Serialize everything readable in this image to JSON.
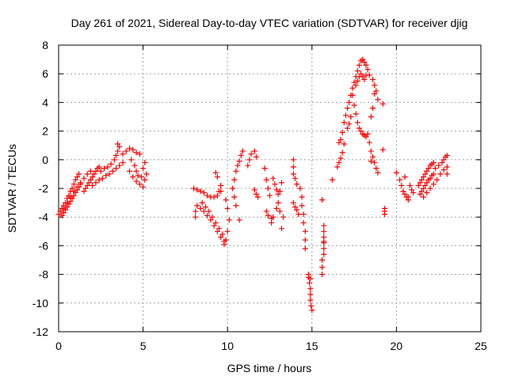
{
  "chart_data": {
    "type": "scatter",
    "title": "Day 261 of 2021, Sidereal Day-to-day VTEC variation (SDTVAR) for receiver djig",
    "xlabel": "GPS time / hours",
    "ylabel": "SDTVAR / TECUs",
    "xlim": [
      0,
      25
    ],
    "ylim": [
      -12,
      8
    ],
    "xticks": [
      0,
      5,
      10,
      15,
      20,
      25
    ],
    "xtick_labels": [
      "0",
      "5",
      "10",
      "15",
      "20",
      "25"
    ],
    "yticks": [
      -12,
      -10,
      -8,
      -6,
      -4,
      -2,
      0,
      2,
      4,
      6,
      8
    ],
    "ytick_labels": [
      "-12",
      "-10",
      "-8",
      "-6",
      "-4",
      "-2",
      "0",
      "2",
      "4",
      "6",
      "8"
    ],
    "grid": true,
    "marker": "+",
    "color": "#ff0000",
    "series": [
      {
        "values": [
          [
            0.0,
            -3.8
          ],
          [
            0.1,
            -3.6
          ],
          [
            0.2,
            -3.4
          ],
          [
            0.3,
            -3.2
          ],
          [
            0.4,
            -3.0
          ],
          [
            0.5,
            -2.7
          ],
          [
            0.6,
            -2.5
          ],
          [
            0.7,
            -2.2
          ],
          [
            0.8,
            -2.0
          ],
          [
            0.9,
            -1.7
          ],
          [
            1.0,
            -1.4
          ],
          [
            1.1,
            -1.2
          ],
          [
            1.2,
            -1.0
          ],
          [
            0.2,
            -3.9
          ],
          [
            0.3,
            -3.7
          ],
          [
            0.4,
            -3.5
          ],
          [
            0.5,
            -3.3
          ],
          [
            0.6,
            -3.1
          ],
          [
            0.7,
            -2.9
          ],
          [
            0.8,
            -2.7
          ],
          [
            0.9,
            -2.5
          ],
          [
            1.0,
            -2.3
          ],
          [
            1.1,
            -2.1
          ],
          [
            1.2,
            -1.9
          ],
          [
            1.3,
            -1.7
          ],
          [
            0.3,
            -3.4
          ],
          [
            0.5,
            -3.0
          ],
          [
            0.7,
            -2.6
          ],
          [
            0.9,
            -2.2
          ],
          [
            1.1,
            -1.9
          ],
          [
            1.3,
            -1.6
          ],
          [
            1.5,
            -1.3
          ],
          [
            1.7,
            -1.0
          ],
          [
            1.9,
            -0.8
          ],
          [
            1.5,
            -2.2
          ],
          [
            1.6,
            -2.0
          ],
          [
            1.7,
            -1.8
          ],
          [
            1.8,
            -1.6
          ],
          [
            1.9,
            -1.4
          ],
          [
            2.0,
            -1.2
          ],
          [
            2.1,
            -1.0
          ],
          [
            2.2,
            -0.8
          ],
          [
            2.3,
            -0.6
          ],
          [
            2.4,
            -0.5
          ],
          [
            2.0,
            -1.8
          ],
          [
            2.2,
            -1.6
          ],
          [
            2.4,
            -1.4
          ],
          [
            2.6,
            -1.3
          ],
          [
            2.8,
            -1.1
          ],
          [
            3.0,
            -1.0
          ],
          [
            3.2,
            -0.8
          ],
          [
            3.4,
            -0.6
          ],
          [
            3.6,
            -0.4
          ],
          [
            3.8,
            -0.2
          ],
          [
            2.5,
            -0.8
          ],
          [
            2.7,
            -0.6
          ],
          [
            2.9,
            -0.5
          ],
          [
            3.1,
            -0.3
          ],
          [
            3.3,
            0.0
          ],
          [
            3.4,
            0.3
          ],
          [
            3.5,
            0.6
          ],
          [
            3.6,
            0.9
          ],
          [
            3.5,
            1.1
          ],
          [
            3.8,
            0.4
          ],
          [
            4.0,
            0.6
          ],
          [
            4.2,
            0.8
          ],
          [
            4.4,
            0.7
          ],
          [
            4.6,
            0.5
          ],
          [
            4.8,
            0.4
          ],
          [
            4.3,
            0.0
          ],
          [
            4.5,
            -0.4
          ],
          [
            4.6,
            -0.8
          ],
          [
            4.7,
            -1.1
          ],
          [
            4.2,
            -0.8
          ],
          [
            4.4,
            -1.2
          ],
          [
            4.6,
            -1.5
          ],
          [
            4.8,
            -1.7
          ],
          [
            5.0,
            -1.9
          ],
          [
            5.1,
            -1.4
          ],
          [
            5.2,
            -1.0
          ],
          [
            5.0,
            -0.6
          ],
          [
            5.1,
            -0.2
          ],
          [
            4.9,
            -1.2
          ],
          [
            8.0,
            -2.0
          ],
          [
            8.2,
            -2.1
          ],
          [
            8.4,
            -2.2
          ],
          [
            8.6,
            -2.3
          ],
          [
            8.8,
            -2.5
          ],
          [
            9.0,
            -2.6
          ],
          [
            9.2,
            -2.6
          ],
          [
            9.4,
            -2.5
          ],
          [
            9.5,
            -2.2
          ],
          [
            9.6,
            -1.8
          ],
          [
            9.4,
            -1.2
          ],
          [
            9.3,
            -0.9
          ],
          [
            8.2,
            -3.2
          ],
          [
            8.4,
            -3.4
          ],
          [
            8.6,
            -3.6
          ],
          [
            8.8,
            -3.9
          ],
          [
            9.0,
            -4.2
          ],
          [
            9.2,
            -4.6
          ],
          [
            9.4,
            -5.0
          ],
          [
            9.6,
            -5.4
          ],
          [
            9.8,
            -5.7
          ],
          [
            8.5,
            -3.0
          ],
          [
            8.7,
            -3.3
          ],
          [
            8.9,
            -3.6
          ],
          [
            9.1,
            -4.0
          ],
          [
            9.3,
            -4.4
          ],
          [
            9.5,
            -4.8
          ],
          [
            9.7,
            -5.2
          ],
          [
            9.8,
            -5.9
          ],
          [
            8.1,
            -3.6
          ],
          [
            8.1,
            -4.0
          ],
          [
            9.6,
            -2.2
          ],
          [
            9.9,
            -2.8
          ],
          [
            10.0,
            -3.4
          ],
          [
            10.1,
            -4.2
          ],
          [
            10.0,
            -5.0
          ],
          [
            9.9,
            -5.6
          ],
          [
            10.3,
            -2.0
          ],
          [
            10.4,
            -1.4
          ],
          [
            10.5,
            -0.8
          ],
          [
            10.6,
            -0.4
          ],
          [
            10.7,
            -0.1
          ],
          [
            10.8,
            0.3
          ],
          [
            10.9,
            0.6
          ],
          [
            10.4,
            -2.6
          ],
          [
            10.5,
            -3.2
          ],
          [
            10.7,
            -4.2
          ],
          [
            11.2,
            -0.4
          ],
          [
            11.3,
            0.0
          ],
          [
            11.4,
            0.4
          ],
          [
            11.6,
            0.6
          ],
          [
            11.7,
            0.2
          ],
          [
            11.6,
            -2.1
          ],
          [
            11.7,
            -2.4
          ],
          [
            11.8,
            -2.6
          ],
          [
            12.2,
            -0.6
          ],
          [
            12.3,
            -1.4
          ],
          [
            12.4,
            -2.0
          ],
          [
            12.5,
            -2.5
          ],
          [
            12.3,
            -3.6
          ],
          [
            12.4,
            -3.9
          ],
          [
            12.6,
            -4.1
          ],
          [
            12.7,
            -4.0
          ],
          [
            12.9,
            -3.4
          ],
          [
            12.7,
            -1.3
          ],
          [
            12.8,
            -1.7
          ],
          [
            12.9,
            -2.1
          ],
          [
            13.0,
            -2.4
          ],
          [
            13.1,
            -2.2
          ],
          [
            13.2,
            -1.6
          ],
          [
            13.0,
            -3.0
          ],
          [
            13.1,
            -3.6
          ],
          [
            13.2,
            -4.8
          ],
          [
            12.6,
            -4.4
          ],
          [
            13.3,
            -4.0
          ],
          [
            13.9,
            0.0
          ],
          [
            13.9,
            -0.5
          ],
          [
            13.9,
            -1.0
          ],
          [
            14.0,
            -1.3
          ],
          [
            14.1,
            -1.7
          ],
          [
            13.9,
            -3.0
          ],
          [
            14.0,
            -3.3
          ],
          [
            14.1,
            -3.5
          ],
          [
            14.2,
            -3.8
          ],
          [
            14.3,
            -2.0
          ],
          [
            14.4,
            -2.6
          ],
          [
            14.4,
            -3.2
          ],
          [
            14.5,
            -3.8
          ],
          [
            14.5,
            -4.4
          ],
          [
            14.6,
            -5.0
          ],
          [
            14.6,
            -5.6
          ],
          [
            14.6,
            -6.2
          ],
          [
            14.8,
            -8.2
          ],
          [
            14.85,
            -8.6
          ],
          [
            14.9,
            -9.0
          ],
          [
            14.9,
            -9.4
          ],
          [
            14.9,
            -9.8
          ],
          [
            14.95,
            -10.2
          ],
          [
            15.0,
            -10.5
          ],
          [
            14.8,
            -8.0
          ],
          [
            14.9,
            -8.3
          ],
          [
            15.6,
            -2.8
          ],
          [
            15.7,
            -4.6
          ],
          [
            15.7,
            -5.0
          ],
          [
            15.7,
            -5.4
          ],
          [
            15.7,
            -5.8
          ],
          [
            15.7,
            -6.2
          ],
          [
            15.7,
            -6.6
          ],
          [
            15.6,
            -7.0
          ],
          [
            15.6,
            -7.5
          ],
          [
            15.6,
            -8.0
          ],
          [
            15.7,
            -5.7
          ],
          [
            16.2,
            -1.4
          ],
          [
            16.5,
            -0.5
          ],
          [
            16.6,
            -0.2
          ],
          [
            16.7,
            0.1
          ],
          [
            16.8,
            0.5
          ],
          [
            16.9,
            1.1
          ],
          [
            17.1,
            2.2
          ],
          [
            17.2,
            2.5
          ],
          [
            17.3,
            3.0
          ],
          [
            16.6,
            1.2
          ],
          [
            16.7,
            1.4
          ],
          [
            16.8,
            1.9
          ],
          [
            16.9,
            2.6
          ],
          [
            17.0,
            3.1
          ],
          [
            17.1,
            3.6
          ],
          [
            17.2,
            4.0
          ],
          [
            17.3,
            4.5
          ],
          [
            17.4,
            5.0
          ],
          [
            17.5,
            5.4
          ],
          [
            17.6,
            5.8
          ],
          [
            17.7,
            6.2
          ],
          [
            17.8,
            6.6
          ],
          [
            17.9,
            6.9
          ],
          [
            18.0,
            7.0
          ],
          [
            18.1,
            6.8
          ],
          [
            18.2,
            6.6
          ],
          [
            18.3,
            6.3
          ],
          [
            18.4,
            5.9
          ],
          [
            17.6,
            5.2
          ],
          [
            17.7,
            5.5
          ],
          [
            17.8,
            5.8
          ],
          [
            17.9,
            6.0
          ],
          [
            18.0,
            5.8
          ],
          [
            18.1,
            5.6
          ],
          [
            18.2,
            5.9
          ],
          [
            17.4,
            4.5
          ],
          [
            17.5,
            3.8
          ],
          [
            17.6,
            3.2
          ],
          [
            17.7,
            2.6
          ],
          [
            17.8,
            2.2
          ],
          [
            17.9,
            2.0
          ],
          [
            18.0,
            1.8
          ],
          [
            18.1,
            1.7
          ],
          [
            18.2,
            1.6
          ],
          [
            18.3,
            1.8
          ],
          [
            18.4,
            1.2
          ],
          [
            18.5,
            0.6
          ],
          [
            18.6,
            0.2
          ],
          [
            18.7,
            -0.2
          ],
          [
            18.8,
            -0.6
          ],
          [
            18.9,
            -0.9
          ],
          [
            18.5,
            -0.1
          ],
          [
            18.6,
            5.6
          ],
          [
            18.7,
            5.2
          ],
          [
            18.8,
            4.8
          ],
          [
            18.9,
            4.2
          ],
          [
            18.7,
            4.6
          ],
          [
            18.6,
            3.6
          ],
          [
            18.5,
            3.0
          ],
          [
            19.2,
            3.9
          ],
          [
            19.2,
            0.7
          ],
          [
            19.3,
            -3.4
          ],
          [
            19.3,
            -3.6
          ],
          [
            19.3,
            -3.8
          ],
          [
            20.0,
            -0.9
          ],
          [
            20.2,
            -1.4
          ],
          [
            20.3,
            -1.8
          ],
          [
            20.4,
            -2.2
          ],
          [
            20.5,
            -2.4
          ],
          [
            20.6,
            -2.6
          ],
          [
            20.7,
            -2.8
          ],
          [
            20.5,
            -1.2
          ],
          [
            20.8,
            -1.8
          ],
          [
            20.9,
            -2.1
          ],
          [
            21.0,
            -2.3
          ],
          [
            20.7,
            -2.6
          ],
          [
            21.3,
            -1.8
          ],
          [
            21.4,
            -1.6
          ],
          [
            21.5,
            -1.4
          ],
          [
            21.6,
            -1.2
          ],
          [
            21.7,
            -1.0
          ],
          [
            21.8,
            -0.8
          ],
          [
            21.9,
            -0.6
          ],
          [
            22.0,
            -0.4
          ],
          [
            22.1,
            -0.3
          ],
          [
            22.2,
            -0.2
          ],
          [
            21.4,
            -2.4
          ],
          [
            21.5,
            -2.2
          ],
          [
            21.6,
            -2.0
          ],
          [
            21.7,
            -1.8
          ],
          [
            21.8,
            -1.6
          ],
          [
            21.9,
            -1.4
          ],
          [
            22.0,
            -1.3
          ],
          [
            22.1,
            -1.1
          ],
          [
            22.2,
            -1.0
          ],
          [
            21.6,
            -2.6
          ],
          [
            21.8,
            -2.3
          ],
          [
            22.0,
            -2.0
          ],
          [
            22.2,
            -1.7
          ],
          [
            22.4,
            -1.4
          ],
          [
            22.6,
            -1.0
          ],
          [
            22.8,
            -0.7
          ],
          [
            23.0,
            -0.5
          ],
          [
            22.3,
            -0.6
          ],
          [
            22.5,
            -0.4
          ],
          [
            22.7,
            -0.2
          ],
          [
            22.8,
            0.0
          ],
          [
            22.9,
            0.2
          ],
          [
            23.0,
            0.3
          ],
          [
            23.0,
            -1.0
          ]
        ]
      }
    ]
  }
}
